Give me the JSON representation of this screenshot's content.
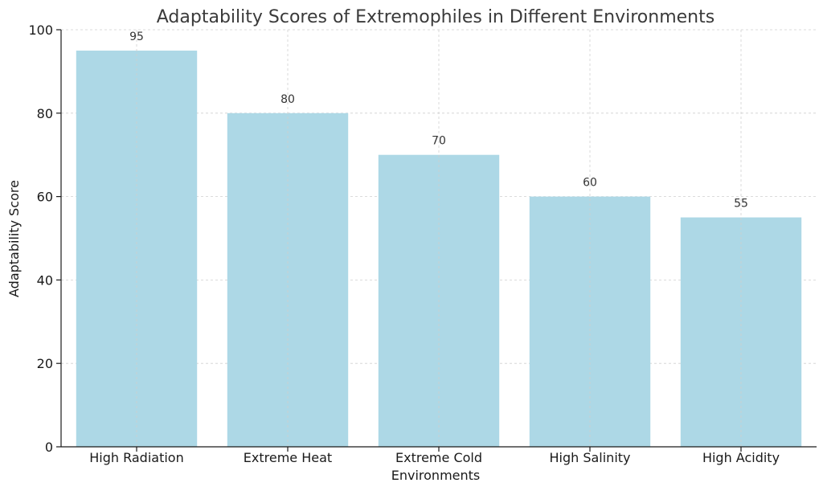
{
  "chart_data": {
    "type": "bar",
    "title": "Adaptability Scores of Extremophiles in Different Environments",
    "xlabel": "Environments",
    "ylabel": "Adaptability Score",
    "categories": [
      "High Radiation",
      "Extreme Heat",
      "Extreme Cold",
      "High Salinity",
      "High Acidity"
    ],
    "values": [
      95,
      80,
      70,
      60,
      55
    ],
    "ylim": [
      0,
      100
    ],
    "yticks": [
      0,
      20,
      40,
      60,
      80,
      100
    ],
    "grid": true,
    "bar_color": "#add8e6"
  }
}
